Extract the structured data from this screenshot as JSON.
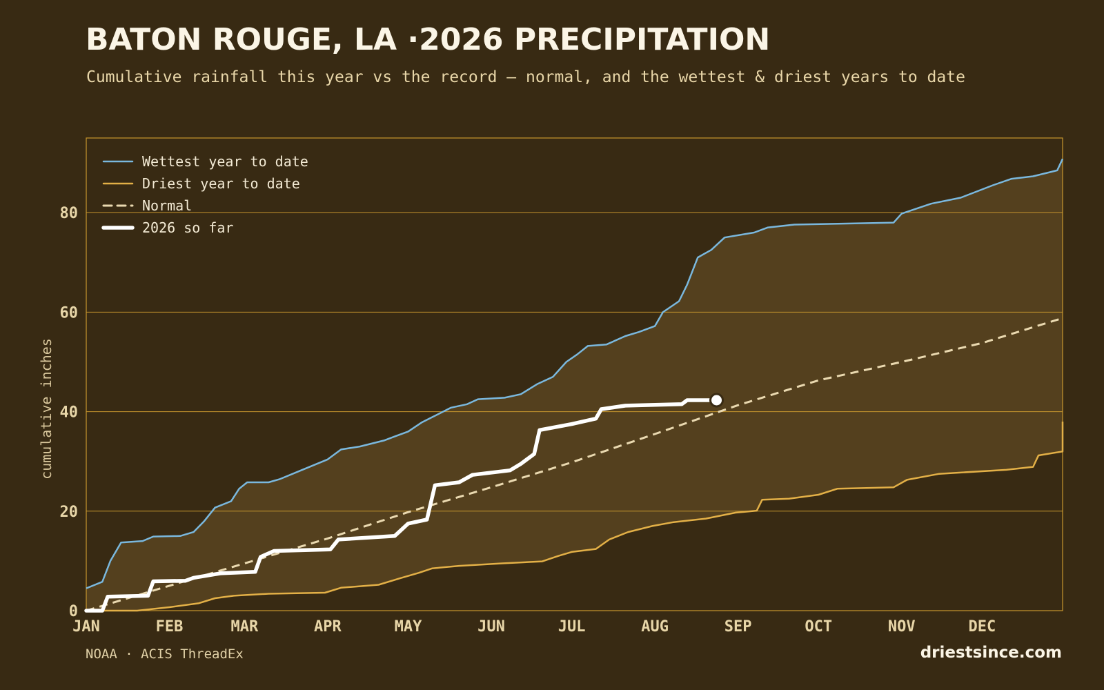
{
  "title": "BATON ROUGE, LA ·2026 PRECIPITATION",
  "subtitle": "Cumulative rainfall this year vs the record — normal, and the wettest & driest years to date",
  "footer": {
    "source": "NOAA · ACIS ThreadEx",
    "brand": "driestsince.com"
  },
  "colors": {
    "background": "#382a13",
    "band": "#54401e",
    "grid": "#c8972e",
    "wettest": "#7ab8de",
    "driest": "#e3b047",
    "normal": "#ead9b0",
    "current": "#ffffff"
  },
  "chart_data": {
    "type": "line",
    "ylabel": "cumulative inches",
    "xlabel": "",
    "ylim": [
      0,
      95
    ],
    "x_range": [
      "Jan 1",
      "Dec 31"
    ],
    "yticks": [
      0,
      20,
      40,
      60,
      80
    ],
    "xticks": [
      "JAN",
      "FEB",
      "MAR",
      "APR",
      "MAY",
      "JUN",
      "JUL",
      "AUG",
      "SEP",
      "OCT",
      "NOV",
      "DEC"
    ],
    "grid": true,
    "legend_position": "top-left",
    "band": "between driest and wettest year to date",
    "series": [
      {
        "name": "Wettest year to date",
        "style": "solid",
        "color": "#7ab8de",
        "points": [
          [
            "Jan 1",
            4.5
          ],
          [
            "Jan 7",
            5.8
          ],
          [
            "Jan 10",
            10
          ],
          [
            "Jan 14",
            13.7
          ],
          [
            "Jan 22",
            14
          ],
          [
            "Jan 26",
            14.9
          ],
          [
            "Feb 5",
            15
          ],
          [
            "Feb 10",
            15.8
          ],
          [
            "Feb 14",
            18
          ],
          [
            "Feb 18",
            20.7
          ],
          [
            "Feb 24",
            22
          ],
          [
            "Feb 27",
            24.5
          ],
          [
            "Mar 2",
            25.8
          ],
          [
            "Mar 10",
            25.8
          ],
          [
            "Mar 14",
            26.4
          ],
          [
            "Mar 23",
            28.4
          ],
          [
            "Apr 1",
            30.4
          ],
          [
            "Apr 6",
            32.4
          ],
          [
            "Apr 13",
            33
          ],
          [
            "Apr 22",
            34.2
          ],
          [
            "Apr 26",
            35
          ],
          [
            "May 1",
            36
          ],
          [
            "May 6",
            37.8
          ],
          [
            "May 10",
            38.9
          ],
          [
            "May 17",
            40.8
          ],
          [
            "May 23",
            41.5
          ],
          [
            "May 27",
            42.5
          ],
          [
            "Jun 6",
            42.8
          ],
          [
            "Jun 12",
            43.5
          ],
          [
            "Jun 18",
            45.5
          ],
          [
            "Jun 24",
            47
          ],
          [
            "Jun 29",
            50
          ],
          [
            "Jul 3",
            51.5
          ],
          [
            "Jul 7",
            53.2
          ],
          [
            "Jul 14",
            53.5
          ],
          [
            "Jul 21",
            55.2
          ],
          [
            "Jul 26",
            56
          ],
          [
            "Aug 1",
            57.2
          ],
          [
            "Aug 4",
            60
          ],
          [
            "Aug 10",
            62.2
          ],
          [
            "Aug 13",
            65.5
          ],
          [
            "Aug 17",
            71
          ],
          [
            "Aug 22",
            72.5
          ],
          [
            "Aug 27",
            75
          ],
          [
            "Sep 7",
            76
          ],
          [
            "Sep 12",
            77
          ],
          [
            "Sep 22",
            77.6
          ],
          [
            "Oct 29",
            78
          ],
          [
            "Nov 1",
            79.8
          ],
          [
            "Nov 12",
            81.8
          ],
          [
            "Nov 23",
            83
          ],
          [
            "Dec 5",
            85.5
          ],
          [
            "Dec 12",
            86.8
          ],
          [
            "Dec 20",
            87.3
          ],
          [
            "Dec 29",
            88.5
          ],
          [
            "Dec 31",
            90.8
          ]
        ]
      },
      {
        "name": "Driest year to date",
        "style": "solid",
        "color": "#e3b047",
        "points": [
          [
            "Jan 1",
            0
          ],
          [
            "Jan 20",
            0
          ],
          [
            "Feb 1",
            0.7
          ],
          [
            "Feb 12",
            1.5
          ],
          [
            "Feb 18",
            2.5
          ],
          [
            "Feb 25",
            3
          ],
          [
            "Mar 10",
            3.4
          ],
          [
            "Mar 31",
            3.6
          ],
          [
            "Apr 6",
            4.6
          ],
          [
            "Apr 20",
            5.2
          ],
          [
            "Apr 28",
            6.5
          ],
          [
            "May 5",
            7.6
          ],
          [
            "May 10",
            8.5
          ],
          [
            "May 20",
            9
          ],
          [
            "Jun 5",
            9.5
          ],
          [
            "Jun 20",
            9.9
          ],
          [
            "Jun 26",
            11
          ],
          [
            "Jul 1",
            11.8
          ],
          [
            "Jul 10",
            12.4
          ],
          [
            "Jul 15",
            14.3
          ],
          [
            "Jul 22",
            15.8
          ],
          [
            "Jul 31",
            17
          ],
          [
            "Aug 8",
            17.8
          ],
          [
            "Aug 20",
            18.5
          ],
          [
            "Aug 31",
            19.7
          ],
          [
            "Sep 8",
            20.1
          ],
          [
            "Sep 10",
            22.3
          ],
          [
            "Sep 20",
            22.5
          ],
          [
            "Oct 1",
            23.3
          ],
          [
            "Oct 8",
            24.5
          ],
          [
            "Oct 29",
            24.8
          ],
          [
            "Nov 3",
            26.3
          ],
          [
            "Nov 15",
            27.5
          ],
          [
            "Dec 10",
            28.3
          ],
          [
            "Dec 20",
            28.9
          ],
          [
            "Dec 22",
            31.2
          ],
          [
            "Dec 31",
            32
          ],
          [
            "Dec 31",
            38
          ]
        ]
      },
      {
        "name": "Normal",
        "style": "dashed",
        "color": "#ead9b0",
        "points": [
          [
            "Jan 1",
            0
          ],
          [
            "Feb 1",
            5
          ],
          [
            "Mar 1",
            9.5
          ],
          [
            "Apr 1",
            14.5
          ],
          [
            "May 1",
            19.8
          ],
          [
            "Jun 1",
            24.8
          ],
          [
            "Jul 1",
            29.8
          ],
          [
            "Aug 1",
            35.5
          ],
          [
            "Sep 1",
            41.3
          ],
          [
            "Oct 1",
            46.3
          ],
          [
            "Nov 1",
            50
          ],
          [
            "Dec 1",
            53.8
          ],
          [
            "Dec 31",
            58.8
          ]
        ]
      },
      {
        "name": "2026 so far",
        "style": "thick",
        "color": "#ffffff",
        "points": [
          [
            "Jan 1",
            0
          ],
          [
            "Jan 7",
            0
          ],
          [
            "Jan 9",
            2.8
          ],
          [
            "Jan 24",
            3
          ],
          [
            "Jan 26",
            5.9
          ],
          [
            "Feb 7",
            6
          ],
          [
            "Feb 10",
            6.6
          ],
          [
            "Feb 20",
            7.5
          ],
          [
            "Mar 5",
            7.8
          ],
          [
            "Mar 7",
            10.8
          ],
          [
            "Mar 12",
            12
          ],
          [
            "Apr 2",
            12.3
          ],
          [
            "Apr 5",
            14.3
          ],
          [
            "Apr 26",
            15
          ],
          [
            "May 1",
            17.5
          ],
          [
            "May 8",
            18.3
          ],
          [
            "May 11",
            25.2
          ],
          [
            "May 20",
            25.8
          ],
          [
            "May 25",
            27.3
          ],
          [
            "Jun 8",
            28.2
          ],
          [
            "Jun 12",
            29.5
          ],
          [
            "Jun 17",
            31.5
          ],
          [
            "Jun 19",
            36.3
          ],
          [
            "Jul 1",
            37.5
          ],
          [
            "Jul 10",
            38.6
          ],
          [
            "Jul 12",
            40.5
          ],
          [
            "Jul 21",
            41.2
          ],
          [
            "Aug 11",
            41.5
          ],
          [
            "Aug 13",
            42.3
          ],
          [
            "Aug 24",
            42.3
          ]
        ]
      }
    ]
  }
}
